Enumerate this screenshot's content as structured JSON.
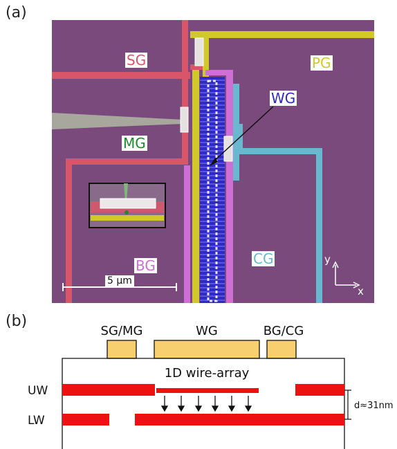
{
  "panel_a": {
    "label": "(a)",
    "gates": {
      "sg": "SG",
      "pg": "PG",
      "wg": "WG",
      "mg": "MG",
      "bg": "BG",
      "cg": "CG"
    },
    "scale_bar": "5 μm",
    "axis_y": "y",
    "axis_x": "x",
    "colors": {
      "background": "#7a4a7c",
      "sg": "#d9566a",
      "pg": "#d1c92c",
      "wg": "#2f2ac4",
      "mg_text": "#1d8a2b",
      "bg": "#cf6fd6",
      "cg": "#6ab8cf",
      "mg_tip": "#a7a79e"
    }
  },
  "panel_b": {
    "label": "(b)",
    "gate_sgmg": "SG/MG",
    "gate_wg": "WG",
    "gate_bgcg": "BG/CG",
    "array_label": "1D wire-array",
    "uw": "UW",
    "lw": "LW",
    "distance": "d≈31nm",
    "colors": {
      "gate_fill": "#f7cf6f",
      "wire": "#ee1111"
    }
  }
}
